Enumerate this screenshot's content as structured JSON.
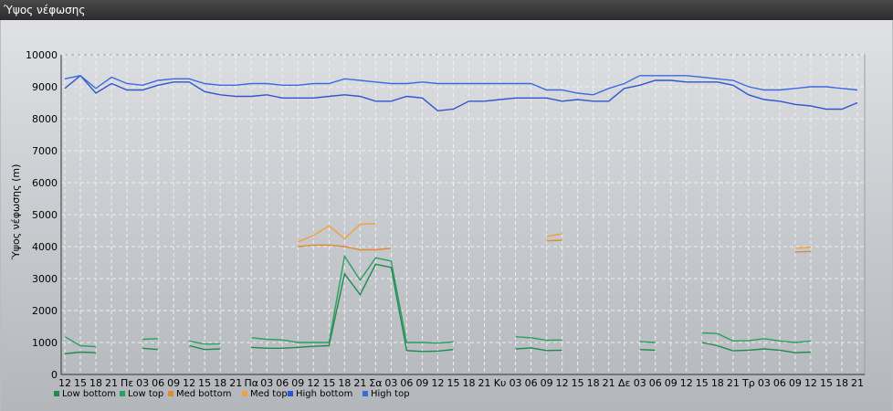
{
  "window": {
    "title": "Ύψος νέφωσης"
  },
  "chart_data": {
    "type": "line",
    "title": "",
    "xlabel": "",
    "ylabel": "Ύψος νέφωσης (m)",
    "ylim": [
      0,
      10000
    ],
    "yticks": [
      0,
      1000,
      2000,
      3000,
      4000,
      5000,
      6000,
      7000,
      8000,
      9000,
      10000
    ],
    "grid": true,
    "legend": "bottom-left",
    "x": [
      "12",
      "15",
      "18",
      "21",
      "Πε",
      "03",
      "06",
      "09",
      "12",
      "15",
      "18",
      "21",
      "Πα",
      "03",
      "06",
      "09",
      "12",
      "15",
      "18",
      "21",
      "Σα",
      "03",
      "06",
      "09",
      "12",
      "15",
      "18",
      "21",
      "Κυ",
      "03",
      "06",
      "09",
      "12",
      "15",
      "18",
      "21",
      "Δε",
      "03",
      "06",
      "09",
      "12",
      "15",
      "18",
      "21",
      "Τρ",
      "03",
      "06",
      "09",
      "12",
      "15",
      "18",
      "21"
    ],
    "series": [
      {
        "name": "Low bottom",
        "color": "#1f8a4c",
        "values": [
          650,
          700,
          680,
          null,
          null,
          820,
          780,
          null,
          900,
          780,
          800,
          null,
          850,
          820,
          820,
          850,
          880,
          900,
          3150,
          2500,
          3450,
          3350,
          750,
          720,
          730,
          780,
          null,
          null,
          null,
          800,
          830,
          750,
          760,
          null,
          null,
          null,
          null,
          780,
          760,
          null,
          null,
          1000,
          900,
          740,
          760,
          800,
          760,
          680,
          700,
          null,
          null,
          null
        ]
      },
      {
        "name": "Low top",
        "color": "#2aa060",
        "values": [
          1180,
          900,
          870,
          null,
          null,
          1100,
          1120,
          null,
          1050,
          950,
          960,
          null,
          1150,
          1100,
          1080,
          1000,
          1000,
          1000,
          3700,
          2950,
          3650,
          3550,
          1000,
          1000,
          980,
          1020,
          null,
          null,
          null,
          1180,
          1150,
          1070,
          1080,
          null,
          null,
          null,
          null,
          1030,
          1000,
          null,
          null,
          1300,
          1280,
          1050,
          1060,
          1120,
          1050,
          1000,
          1050,
          null,
          null,
          null
        ]
      },
      {
        "name": "Med bottom",
        "color": "#e08a30",
        "values": [
          null,
          null,
          null,
          null,
          null,
          null,
          null,
          null,
          null,
          null,
          null,
          null,
          null,
          null,
          null,
          null,
          null,
          null,
          null,
          null,
          null,
          null,
          null,
          null,
          null,
          null,
          null,
          null,
          null,
          null,
          null,
          null,
          null,
          null,
          null,
          null,
          null,
          null,
          null,
          null,
          null,
          null,
          null,
          null,
          null,
          null,
          null,
          null,
          null,
          null,
          null,
          null
        ]
      },
      {
        "name": "Med top",
        "color": "#f0a040",
        "values": [
          null,
          null,
          null,
          null,
          null,
          null,
          null,
          null,
          null,
          null,
          null,
          null,
          null,
          null,
          null,
          4150,
          4350,
          4650,
          4250,
          4700,
          4720,
          null,
          null,
          null,
          null,
          null,
          null,
          null,
          null,
          null,
          null,
          4320,
          4400,
          null,
          null,
          null,
          null,
          null,
          null,
          null,
          null,
          null,
          null,
          null,
          null,
          null,
          null,
          3950,
          3980,
          null,
          null,
          null
        ]
      },
      {
        "name": "High bottom",
        "color": "#2f55d0",
        "values": [
          8950,
          9350,
          8800,
          9100,
          8900,
          8900,
          9050,
          9150,
          9150,
          8850,
          8750,
          8700,
          8700,
          8750,
          8650,
          8650,
          8650,
          8700,
          8750,
          8700,
          8550,
          8550,
          8700,
          8650,
          8250,
          8300,
          8550,
          8550,
          8600,
          8650,
          8650,
          8650,
          8550,
          8600,
          8550,
          8550,
          8950,
          9050,
          9200,
          9200,
          9150,
          9150,
          9150,
          9050,
          8750,
          8600,
          8550,
          8450,
          8400,
          8300,
          8300,
          8500
        ]
      },
      {
        "name": "High top",
        "color": "#3b6ae0",
        "values": [
          9250,
          9350,
          8950,
          9300,
          9100,
          9050,
          9200,
          9250,
          9250,
          9100,
          9050,
          9050,
          9100,
          9100,
          9050,
          9050,
          9100,
          9100,
          9250,
          9200,
          9150,
          9100,
          9100,
          9150,
          9100,
          9100,
          9100,
          9100,
          9100,
          9100,
          9100,
          8900,
          8900,
          8800,
          8750,
          8950,
          9100,
          9350,
          9350,
          9350,
          9350,
          9300,
          9250,
          9200,
          9000,
          8900,
          8900,
          8950,
          9000,
          9000,
          8950,
          8900
        ]
      }
    ],
    "extra_med_bottom": [
      null,
      null,
      null,
      null,
      null,
      null,
      null,
      null,
      null,
      null,
      null,
      null,
      null,
      null,
      null,
      4000,
      4050,
      4050,
      4000,
      3900,
      3900,
      3950,
      null,
      null,
      null,
      null,
      null,
      null,
      null,
      null,
      null,
      4180,
      4200,
      null,
      null,
      null,
      null,
      null,
      null,
      null,
      null,
      null,
      null,
      null,
      null,
      null,
      null,
      3830,
      3850,
      null,
      null,
      null
    ]
  }
}
